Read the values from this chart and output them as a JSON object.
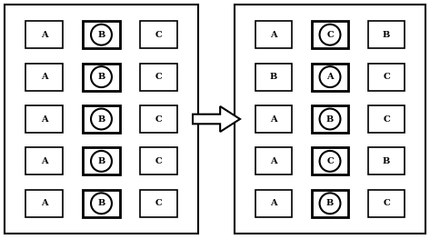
{
  "left_panel": {
    "cells": [
      [
        {
          "letter": "A",
          "shape": "square"
        },
        {
          "letter": "B",
          "shape": "circle_square"
        },
        {
          "letter": "C",
          "shape": "square"
        }
      ],
      [
        {
          "letter": "A",
          "shape": "square"
        },
        {
          "letter": "B",
          "shape": "circle_square"
        },
        {
          "letter": "C",
          "shape": "square"
        }
      ],
      [
        {
          "letter": "A",
          "shape": "square"
        },
        {
          "letter": "B",
          "shape": "circle_square"
        },
        {
          "letter": "C",
          "shape": "square"
        }
      ],
      [
        {
          "letter": "A",
          "shape": "square"
        },
        {
          "letter": "B",
          "shape": "circle_square"
        },
        {
          "letter": "C",
          "shape": "square"
        }
      ],
      [
        {
          "letter": "A",
          "shape": "square"
        },
        {
          "letter": "B",
          "shape": "circle_square"
        },
        {
          "letter": "C",
          "shape": "square"
        }
      ]
    ]
  },
  "right_panel": {
    "cells": [
      [
        {
          "letter": "A",
          "shape": "square"
        },
        {
          "letter": "C",
          "shape": "circle_square"
        },
        {
          "letter": "B",
          "shape": "square"
        }
      ],
      [
        {
          "letter": "B",
          "shape": "square"
        },
        {
          "letter": "A",
          "shape": "circle_square"
        },
        {
          "letter": "C",
          "shape": "square"
        }
      ],
      [
        {
          "letter": "A",
          "shape": "square"
        },
        {
          "letter": "B",
          "shape": "circle_square"
        },
        {
          "letter": "C",
          "shape": "square"
        }
      ],
      [
        {
          "letter": "A",
          "shape": "square"
        },
        {
          "letter": "C",
          "shape": "circle_square"
        },
        {
          "letter": "B",
          "shape": "square"
        }
      ],
      [
        {
          "letter": "A",
          "shape": "square"
        },
        {
          "letter": "B",
          "shape": "circle_square"
        },
        {
          "letter": "C",
          "shape": "square"
        }
      ]
    ]
  },
  "bg_color": "#ffffff"
}
